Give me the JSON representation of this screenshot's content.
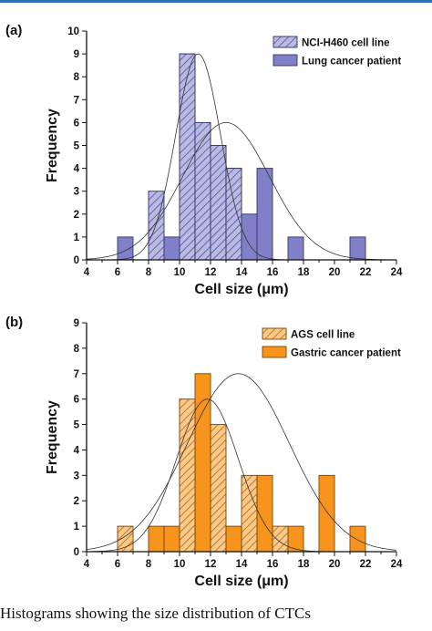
{
  "chart_data": [
    {
      "type": "bar",
      "panel_label": "(a)",
      "xlabel": "Cell size (μm)",
      "ylabel": "Frequency",
      "xlim": [
        4,
        24
      ],
      "ylim": [
        0,
        10
      ],
      "xticks": [
        "4",
        "6",
        "8",
        "10",
        "12",
        "14",
        "16",
        "18",
        "20",
        "22",
        "24"
      ],
      "yticks": [
        "0",
        "1",
        "2",
        "3",
        "4",
        "5",
        "6",
        "7",
        "8",
        "9",
        "10"
      ],
      "bin_width": 1,
      "legend_position": "top-right",
      "series": [
        {
          "name": "NCI-H460 cell line",
          "color": "#8080c8",
          "hatched": true,
          "bins": [
            {
              "x": 8.5,
              "y": 3
            },
            {
              "x": 10.5,
              "y": 9
            },
            {
              "x": 11.5,
              "y": 6
            },
            {
              "x": 12.5,
              "y": 5
            },
            {
              "x": 13.5,
              "y": 4
            }
          ],
          "fit": {
            "mean": 11.2,
            "sd": 1.45,
            "peak": 9
          }
        },
        {
          "name": "Lung cancer patient",
          "color": "#8080c8",
          "hatched": false,
          "bins": [
            {
              "x": 6.5,
              "y": 1
            },
            {
              "x": 9.5,
              "y": 1
            },
            {
              "x": 10.5,
              "y": 9
            },
            {
              "x": 11.5,
              "y": 6
            },
            {
              "x": 12.5,
              "y": 5
            },
            {
              "x": 13.5,
              "y": 4
            },
            {
              "x": 14.5,
              "y": 2
            },
            {
              "x": 15.5,
              "y": 4
            },
            {
              "x": 17.5,
              "y": 1
            },
            {
              "x": 21.5,
              "y": 1
            }
          ],
          "fit": {
            "mean": 13.0,
            "sd": 2.8,
            "peak": 6
          }
        }
      ]
    },
    {
      "type": "bar",
      "panel_label": "(b)",
      "xlabel": "Cell size (μm)",
      "ylabel": "Frequency",
      "xlim": [
        4,
        24
      ],
      "ylim": [
        0,
        9
      ],
      "xticks": [
        "4",
        "6",
        "8",
        "10",
        "12",
        "14",
        "16",
        "18",
        "20",
        "22",
        "24"
      ],
      "yticks": [
        "0",
        "1",
        "2",
        "3",
        "4",
        "5",
        "6",
        "7",
        "8",
        "9"
      ],
      "bin_width": 1,
      "legend_position": "top-right",
      "series": [
        {
          "name": "AGS cell line",
          "color": "#f7941d",
          "hatched": true,
          "bins": [
            {
              "x": 6.5,
              "y": 1
            },
            {
              "x": 10.5,
              "y": 6
            },
            {
              "x": 12.5,
              "y": 5
            },
            {
              "x": 14.5,
              "y": 3
            },
            {
              "x": 16.5,
              "y": 1
            }
          ],
          "fit": {
            "mean": 11.8,
            "sd": 2.0,
            "peak": 6
          }
        },
        {
          "name": "Gastric cancer patient",
          "color": "#f7941d",
          "hatched": false,
          "bins": [
            {
              "x": 8.5,
              "y": 1
            },
            {
              "x": 9.5,
              "y": 1
            },
            {
              "x": 11.5,
              "y": 7
            },
            {
              "x": 13.5,
              "y": 1
            },
            {
              "x": 15.5,
              "y": 3
            },
            {
              "x": 17.5,
              "y": 1
            },
            {
              "x": 19.5,
              "y": 3
            },
            {
              "x": 21.5,
              "y": 1
            }
          ],
          "fit": {
            "mean": 13.8,
            "sd": 3.3,
            "peak": 7
          }
        }
      ]
    }
  ],
  "caption": "Histograms showing the size distribution of CTCs"
}
